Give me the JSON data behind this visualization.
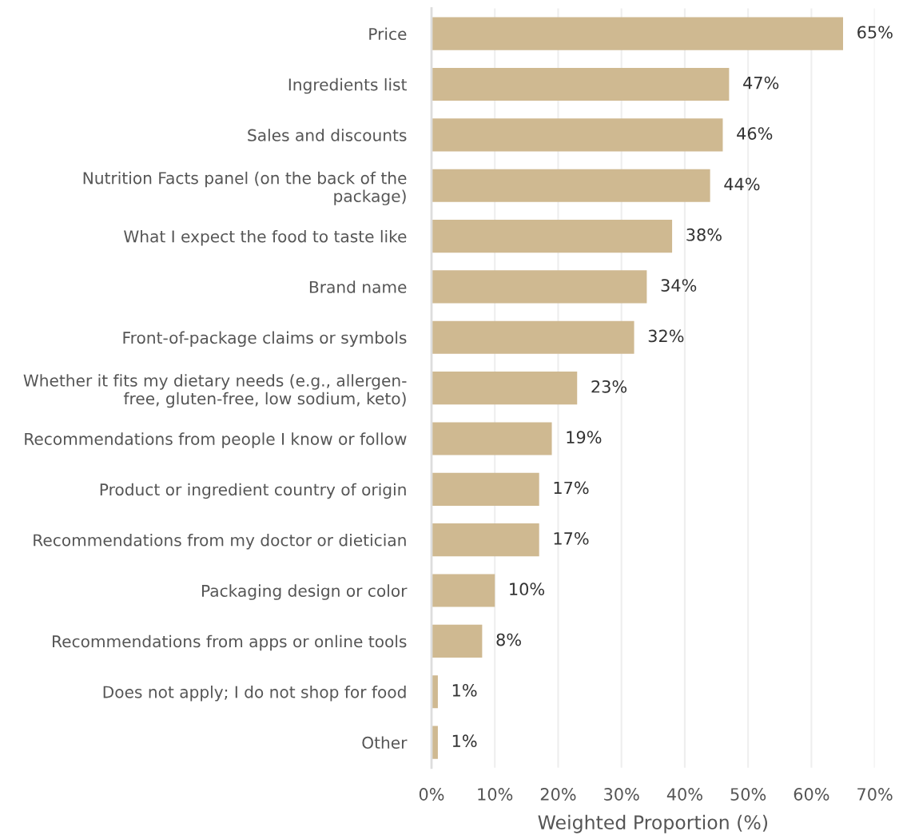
{
  "chart_data": {
    "type": "bar",
    "orientation": "horizontal",
    "xlabel": "Weighted Proportion (%)",
    "categories": [
      "Price",
      "Ingredients list",
      "Sales and discounts",
      "Nutrition Facts panel (on the back of the\npackage)",
      "What I expect the food to taste like",
      "Brand name",
      "Front-of-package claims or symbols",
      "Whether it fits my dietary needs (e.g., allergen-\nfree, gluten-free, low sodium, keto)",
      "Recommendations from people I know or follow",
      "Product or ingredient country of origin",
      "Recommendations from my doctor or dietician",
      "Packaging design or color",
      "Recommendations from apps or online tools",
      "Does not apply; I do not shop for food",
      "Other"
    ],
    "values": [
      65,
      47,
      46,
      44,
      38,
      34,
      32,
      23,
      19,
      17,
      17,
      10,
      8,
      1,
      1
    ],
    "value_labels": [
      "65%",
      "47%",
      "46%",
      "44%",
      "38%",
      "34%",
      "32%",
      "23%",
      "19%",
      "17%",
      "17%",
      "10%",
      "8%",
      "1%",
      "1%"
    ],
    "color": "#cfb991",
    "xlim": [
      0,
      70
    ],
    "xticks": [
      {
        "value": 0,
        "label": "0%"
      },
      {
        "value": 10,
        "label": "10%"
      },
      {
        "value": 20,
        "label": "20%"
      },
      {
        "value": 30,
        "label": "30%"
      },
      {
        "value": 40,
        "label": "40%"
      },
      {
        "value": 50,
        "label": "50%"
      },
      {
        "value": 60,
        "label": "60%"
      },
      {
        "value": 70,
        "label": "70%"
      }
    ],
    "grid": "x"
  }
}
